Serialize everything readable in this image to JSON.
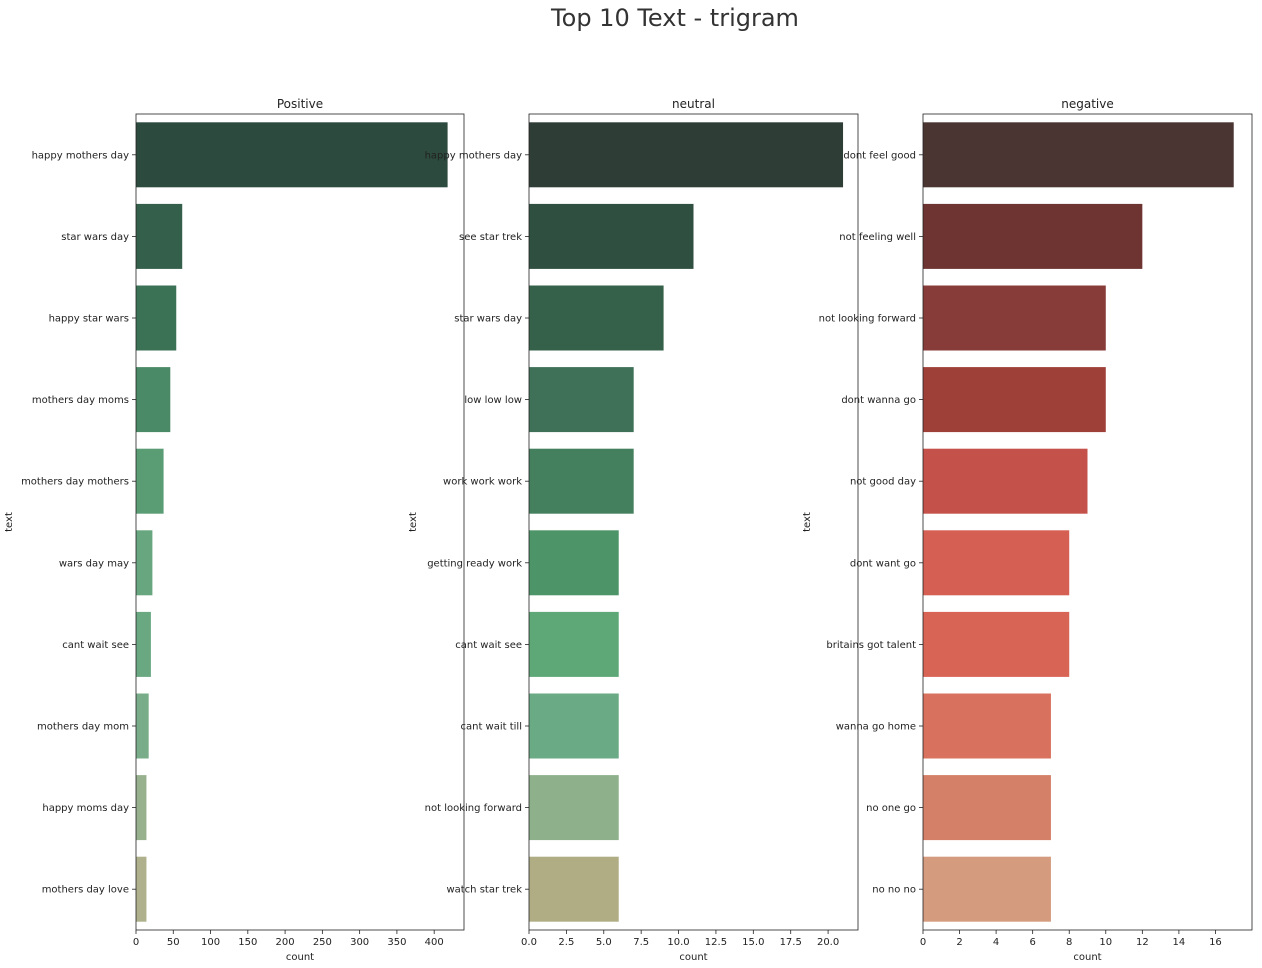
{
  "figure": {
    "title": "Top 10  Text - trigram"
  },
  "chart_data": [
    {
      "type": "bar",
      "orientation": "horizontal",
      "title": "Positive",
      "xlabel": "count",
      "ylabel": "text",
      "xlim": [
        0,
        440
      ],
      "xticks": [
        0,
        50,
        100,
        150,
        200,
        250,
        300,
        350,
        400
      ],
      "categories": [
        "happy mothers day",
        "star wars day",
        "happy star wars",
        "mothers day moms",
        "mothers day mothers",
        "wars day may",
        "cant wait see",
        "mothers day mom",
        "happy moms day",
        "mothers day love"
      ],
      "values": [
        418,
        62,
        54,
        46,
        37,
        22,
        20,
        17,
        14,
        14
      ],
      "colors": [
        "#2c4a3e",
        "#335f4b",
        "#3b7256",
        "#4a8a66",
        "#5a9d74",
        "#67a67f",
        "#6aa882",
        "#79ac88",
        "#97b08e",
        "#aeb18c"
      ]
    },
    {
      "type": "bar",
      "orientation": "horizontal",
      "title": "neutral",
      "xlabel": "count",
      "ylabel": "text",
      "xlim": [
        0,
        22
      ],
      "xticks": [
        0,
        2.5,
        5,
        7.5,
        10,
        12.5,
        15,
        17.5,
        20
      ],
      "xtick_labels": [
        "0.0",
        "2.5",
        "5.0",
        "7.5",
        "10.0",
        "12.5",
        "15.0",
        "17.5",
        "20.0"
      ],
      "categories": [
        "happy mothers day",
        "see star trek",
        "star wars day",
        "low low low",
        "work work work",
        "getting ready work",
        "cant wait see",
        "cant wait till",
        "not looking forward",
        "watch star trek"
      ],
      "values": [
        21,
        11,
        9,
        7,
        7,
        6,
        6,
        6,
        6,
        6
      ],
      "colors": [
        "#2f3d37",
        "#2f4f40",
        "#356049",
        "#3e7157",
        "#44805e",
        "#4d9568",
        "#5ea878",
        "#6aaa84",
        "#8eb08a",
        "#b0ad85"
      ]
    },
    {
      "type": "bar",
      "orientation": "horizontal",
      "title": "negative",
      "xlabel": "count",
      "ylabel": "text",
      "xlim": [
        0,
        18
      ],
      "xticks": [
        0,
        2,
        4,
        6,
        8,
        10,
        12,
        14,
        16
      ],
      "categories": [
        "dont feel good",
        "not feeling well",
        "not looking forward",
        "dont wanna go",
        "not good day",
        "dont want go",
        "britains got talent",
        "wanna go home",
        "no one go",
        "no no no"
      ],
      "values": [
        17,
        12,
        10,
        10,
        9,
        8,
        8,
        7,
        7,
        7
      ],
      "colors": [
        "#4a3533",
        "#6e3431",
        "#883c39",
        "#9e3f38",
        "#c5524a",
        "#d45f52",
        "#d86455",
        "#d8725e",
        "#d48068",
        "#d49b7e"
      ]
    }
  ]
}
